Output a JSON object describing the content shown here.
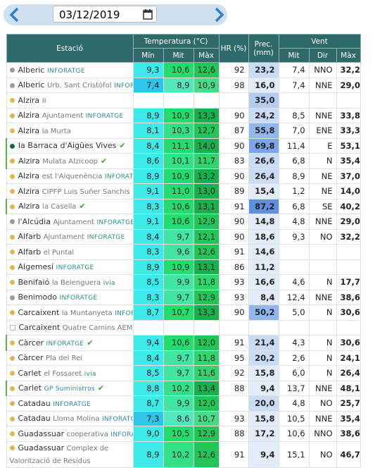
{
  "date_picker": {
    "date": "03/12/2019"
  },
  "table": {
    "header": {
      "station": "Estació",
      "temperature": "Temperatura (°C)",
      "humidity": "HR (%)",
      "precipitation": "Prec. (mm)",
      "wind": "Vent",
      "sub": [
        "Mín",
        "Mit",
        "Màx",
        "Mit",
        "Dir",
        "Màx"
      ]
    },
    "rows": [
      {
        "station": "Alberic",
        "source": "INFORATGE",
        "dot": "#9a9a9a",
        "values": [
          "9,3",
          "10,6",
          "12,6",
          "92",
          "23,2",
          "7,4",
          "NNO",
          "32,2"
        ]
      },
      {
        "station": "Alberic",
        "place": "Urb. Sant Cristòfol",
        "source": "INFORATGE",
        "dot": "#9a9a9a",
        "values": [
          "7,4",
          "8,9",
          "10,9",
          "98",
          "16,0",
          "7,4",
          "NNE",
          "29,0"
        ]
      },
      {
        "station": "Alzira",
        "place": "II",
        "dot": "#e6b450",
        "values": [
          null,
          null,
          null,
          null,
          "35,0",
          null,
          null,
          null
        ]
      },
      {
        "station": "Alzira",
        "place": "Ajuntament",
        "source": "INFORATGE",
        "dot": "#e6b450",
        "values": [
          "8,9",
          "10,9",
          "13,3",
          "90",
          "24,2",
          "8,5",
          "NNE",
          "33,8"
        ]
      },
      {
        "station": "Alzira",
        "place": "la Murta",
        "dot": "#e6b450",
        "values": [
          "8,1",
          "10,3",
          "12,7",
          "87",
          "55,8",
          "7,0",
          "ENE",
          "33,3"
        ]
      },
      {
        "station": "la Barraca d'Aigües Vives",
        "dot": "#1f5f5f",
        "verified": true,
        "values": [
          "8,4",
          "11,1",
          "14,0",
          "90",
          "69,8",
          "11,4",
          "E",
          "53,1"
        ]
      },
      {
        "station": "Alzira",
        "place": "Mulata Alzicoop",
        "dot": "#e6b450",
        "verified": true,
        "values": [
          "8,6",
          "10,1",
          "11,7",
          "83",
          "26,6",
          "6,8",
          "N",
          "35,4"
        ]
      },
      {
        "station": "Alzira",
        "place": "est l'Alquenència",
        "source": "INFORATGE",
        "dot": "#e6b450",
        "values": [
          "8,9",
          "10,9",
          "13,2",
          "90",
          "26,4",
          "8,9",
          "NE",
          "37,0"
        ]
      },
      {
        "station": "Alzira",
        "place": "CIPFP Luis Suñer Sanchis",
        "dot": "#e6b450",
        "values": [
          "9,1",
          "11,0",
          "13,0",
          "89",
          "15,4",
          "1,2",
          "NE",
          "14,0"
        ]
      },
      {
        "station": "Alzira",
        "place": "la Casella",
        "dot": "#e6b450",
        "verified": true,
        "values": [
          "8,3",
          "10,6",
          "13,1",
          "91",
          "87,2",
          "6,8",
          "SE",
          "40,2"
        ]
      },
      {
        "station": "l'Alcúdia",
        "place": "Ajuntament",
        "source": "INFORATGE",
        "dot": "#9a9a9a",
        "values": [
          "9,1",
          "10,6",
          "12,9",
          "90",
          "14,8",
          "4,8",
          "NNE",
          "29,0"
        ]
      },
      {
        "station": "Alfarb",
        "place": "Ajuntament",
        "source": "INFORATGE",
        "dot": "#e6b450",
        "values": [
          "8,4",
          "9,7",
          "12,1",
          "90",
          "18,6",
          "9,3",
          "NO",
          "32,2"
        ]
      },
      {
        "station": "Alfarb",
        "place": "el Puntal",
        "dot": "#e6b450",
        "values": [
          "8,3",
          "9,6",
          "12,6",
          "91",
          "14,6",
          null,
          null,
          null
        ]
      },
      {
        "station": "Algemesí",
        "source": "INFORATGE",
        "dot": "#e6b450",
        "values": [
          "8,9",
          "10,9",
          "13,1",
          "86",
          "11,2",
          null,
          null,
          null
        ]
      },
      {
        "station": "Benifaió",
        "place": "la Belenguera",
        "source": "ivia",
        "dot": "#e6b450",
        "values": [
          "8,5",
          "9,9",
          "11,8",
          "93",
          "16,6",
          "4,6",
          "N",
          "17,7"
        ]
      },
      {
        "station": "Benimodo",
        "source": "INFORATGE",
        "dot": "#9a9a9a",
        "values": [
          "8,3",
          "9,7",
          "12,9",
          "93",
          "8,4",
          "12,4",
          "NNE",
          "38,6"
        ]
      },
      {
        "station": "Carcaixent",
        "place": "la Muntanyeta",
        "source": "INFORATGE",
        "dot": "#e6b450",
        "values": [
          "8,7",
          "10,7",
          "13,3",
          "90",
          "50,2",
          "5,0",
          "N",
          "30,6"
        ]
      },
      {
        "station": "Carcaixent",
        "place": "Quatre Camins AEMET",
        "values": [
          null,
          null,
          null,
          null,
          null,
          null,
          null,
          null
        ]
      },
      {
        "station": "Càrcer",
        "source": "INFORATGE",
        "dot": "#e6b450",
        "verified": true,
        "values": [
          "9,4",
          "10,6",
          "12,0",
          "91",
          "21,4",
          "4,3",
          "N",
          "30,6"
        ]
      },
      {
        "station": "Càrcer",
        "place": "Pla del Rei",
        "dot": "#e6b450",
        "values": [
          "8,4",
          "9,7",
          "11,8",
          "95",
          "20,2",
          "2,6",
          "N",
          "24,1"
        ]
      },
      {
        "station": "Carlet",
        "place": "el Fossaret",
        "source": "ivia",
        "dot": "#e6b450",
        "values": [
          "8,5",
          "9,7",
          "11,6",
          "92",
          "15,8",
          "6,0",
          "N",
          "26,4"
        ]
      },
      {
        "station": "Carlet",
        "source": "GP Suministros",
        "dot": "#e6b450",
        "verified": true,
        "values": [
          "8,8",
          "10,2",
          "13,4",
          "88",
          "9,4",
          "13,7",
          "NNE",
          "48,1"
        ]
      },
      {
        "station": "Catadau",
        "source": "INFORATGE",
        "dot": "#e6b450",
        "values": [
          "8,7",
          "9,9",
          "12,0",
          null,
          "20,0",
          "4,8",
          "NO",
          "25,7"
        ]
      },
      {
        "station": "Catadau",
        "place": "Lloma Molina",
        "source": "INFORATGE",
        "dot": "#e6b450",
        "values": [
          "7,3",
          "8,6",
          "10,7",
          "93",
          "15,8",
          "10,5",
          "NNE",
          "35,4"
        ]
      },
      {
        "station": "Guadassuar",
        "place": "cooperativa",
        "source": "INFORATGE",
        "dot": "#e6b450",
        "values": [
          "9,0",
          "10,5",
          "12,9",
          "88",
          "17,2",
          "10,6",
          "NNO",
          "38,6"
        ]
      },
      {
        "station": "Guadassuar",
        "place": "Complex de Valorització de Residus",
        "dot": "#e6b450",
        "values": [
          "8,9",
          "10,2",
          "12,6",
          "91",
          "9,4",
          "15,1",
          "NO",
          "46,7"
        ]
      }
    ]
  }
}
